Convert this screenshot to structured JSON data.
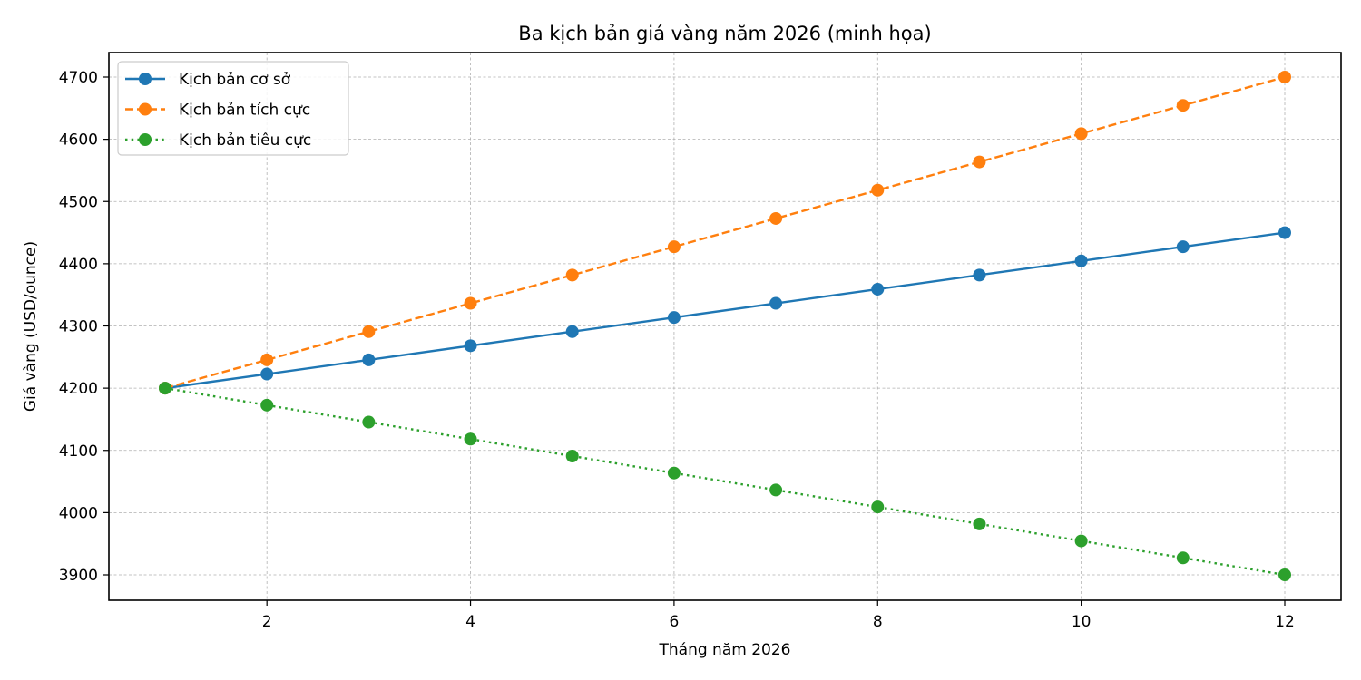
{
  "chart_data": {
    "type": "line",
    "title": "Ba kịch bản giá vàng năm 2026 (minh họa)",
    "xlabel": "Tháng năm 2026",
    "ylabel": "Giá vàng (USD/ounce)",
    "x": [
      1,
      2,
      3,
      4,
      5,
      6,
      7,
      8,
      9,
      10,
      11,
      12
    ],
    "xticks": [
      2,
      4,
      6,
      8,
      10,
      12
    ],
    "yticks": [
      3900,
      4000,
      4100,
      4200,
      4300,
      4400,
      4500,
      4600,
      4700
    ],
    "xlim": [
      0.45,
      12.55
    ],
    "ylim": [
      3860,
      4740
    ],
    "grid": true,
    "legend_position": "upper left",
    "series": [
      {
        "name": "Kịch bản cơ sở",
        "color": "#1f77b4",
        "linestyle": "solid",
        "marker": "circle",
        "values": [
          4200,
          4222.7,
          4245.5,
          4268.2,
          4290.9,
          4313.6,
          4336.4,
          4359.1,
          4381.8,
          4404.5,
          4427.3,
          4450
        ]
      },
      {
        "name": "Kịch bản tích cực",
        "color": "#ff7f0e",
        "linestyle": "dashed",
        "marker": "circle",
        "values": [
          4200,
          4245.5,
          4290.9,
          4336.4,
          4381.8,
          4427.3,
          4472.7,
          4518.2,
          4563.6,
          4609.1,
          4654.5,
          4700
        ]
      },
      {
        "name": "Kịch bản tiêu cực",
        "color": "#2ca02c",
        "linestyle": "dotted",
        "marker": "circle",
        "values": [
          4200,
          4172.7,
          4145.5,
          4118.2,
          4090.9,
          4063.6,
          4036.4,
          4009.1,
          3981.8,
          3954.5,
          3927.3,
          3900
        ]
      }
    ]
  }
}
